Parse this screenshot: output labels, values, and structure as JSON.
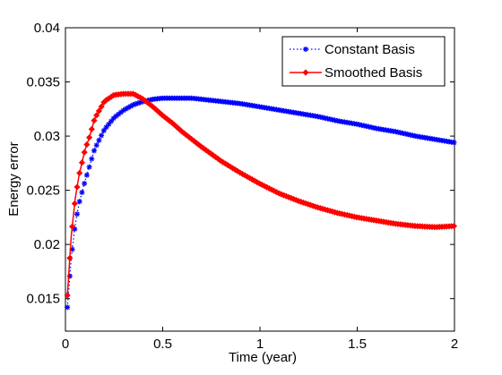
{
  "chart_data": {
    "type": "line",
    "title": "",
    "xlabel": "Time (year)",
    "ylabel": "Energy error",
    "xlim": [
      0,
      2
    ],
    "ylim": [
      0.012,
      0.04
    ],
    "xticks": [
      0,
      0.5,
      1,
      1.5,
      2
    ],
    "xtick_labels": [
      "0",
      "0.5",
      "1",
      "1.5",
      "2"
    ],
    "yticks": [
      0.015,
      0.02,
      0.025,
      0.03,
      0.035,
      0.04
    ],
    "ytick_labels": [
      "0.015",
      "0.02",
      "0.025",
      "0.03",
      "0.035",
      "0.04"
    ],
    "grid": false,
    "legend_position": "top-right",
    "series": [
      {
        "name": "Constant Basis",
        "color": "#0000ff",
        "line_style": "dotted",
        "marker": "asterisk",
        "x": [
          0.01,
          0.03,
          0.05,
          0.07,
          0.1,
          0.15,
          0.2,
          0.25,
          0.3,
          0.35,
          0.4,
          0.45,
          0.5,
          0.55,
          0.6,
          0.65,
          0.7,
          0.75,
          0.8,
          0.9,
          1.0,
          1.1,
          1.2,
          1.3,
          1.4,
          1.5,
          1.6,
          1.7,
          1.8,
          1.9,
          2.0
        ],
        "y": [
          0.0142,
          0.0188,
          0.0218,
          0.0238,
          0.0258,
          0.0288,
          0.0306,
          0.0317,
          0.0324,
          0.0329,
          0.0332,
          0.0334,
          0.0335,
          0.0335,
          0.0335,
          0.0335,
          0.0334,
          0.0333,
          0.0332,
          0.033,
          0.0327,
          0.0324,
          0.0321,
          0.0318,
          0.0314,
          0.0311,
          0.0307,
          0.0304,
          0.03,
          0.0297,
          0.0294
        ]
      },
      {
        "name": "Smoothed Basis",
        "color": "#ff0000",
        "line_style": "solid",
        "marker": "diamond",
        "x": [
          0.01,
          0.03,
          0.05,
          0.07,
          0.1,
          0.125,
          0.15,
          0.2,
          0.25,
          0.3,
          0.35,
          0.4,
          0.45,
          0.5,
          0.55,
          0.6,
          0.7,
          0.8,
          0.9,
          1.0,
          1.1,
          1.2,
          1.3,
          1.4,
          1.5,
          1.6,
          1.7,
          1.8,
          1.9,
          2.0
        ],
        "y": [
          0.0153,
          0.0208,
          0.0242,
          0.0264,
          0.0287,
          0.03,
          0.0316,
          0.0332,
          0.0338,
          0.0339,
          0.0339,
          0.0334,
          0.0327,
          0.0319,
          0.0312,
          0.0304,
          0.029,
          0.0277,
          0.0266,
          0.0256,
          0.0247,
          0.024,
          0.0234,
          0.0229,
          0.0225,
          0.0222,
          0.0219,
          0.0217,
          0.0216,
          0.0217
        ]
      }
    ]
  }
}
